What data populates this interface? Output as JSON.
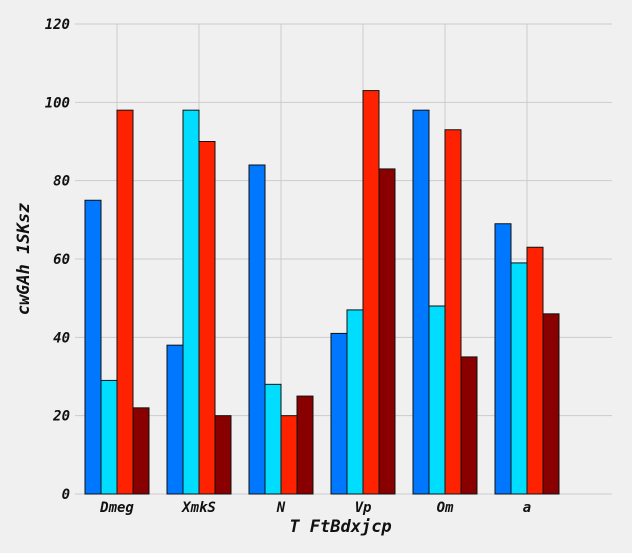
{
  "chart_data": {
    "type": "bar",
    "title": "",
    "xlabel": "T FtBdxjcp",
    "ylabel": "cwGAh 1SKsz",
    "categories": [
      "Dmeg",
      "XmkS",
      "N",
      "Vp",
      "Om",
      "a"
    ],
    "series": [
      {
        "color": "#0077ff",
        "values": [
          75,
          38,
          84,
          41,
          98,
          69
        ]
      },
      {
        "color": "#00ddff",
        "values": [
          29,
          98,
          28,
          47,
          48,
          59
        ]
      },
      {
        "color": "#ff2200",
        "values": [
          98,
          90,
          20,
          103,
          93,
          63
        ]
      },
      {
        "color": "#880000",
        "values": [
          22,
          20,
          25,
          83,
          35,
          46
        ]
      }
    ],
    "ylim": [
      0,
      120
    ],
    "yticks": [
      0,
      20,
      40,
      60,
      80,
      100,
      120
    ],
    "grid": true,
    "background": "#f0f0f0"
  }
}
